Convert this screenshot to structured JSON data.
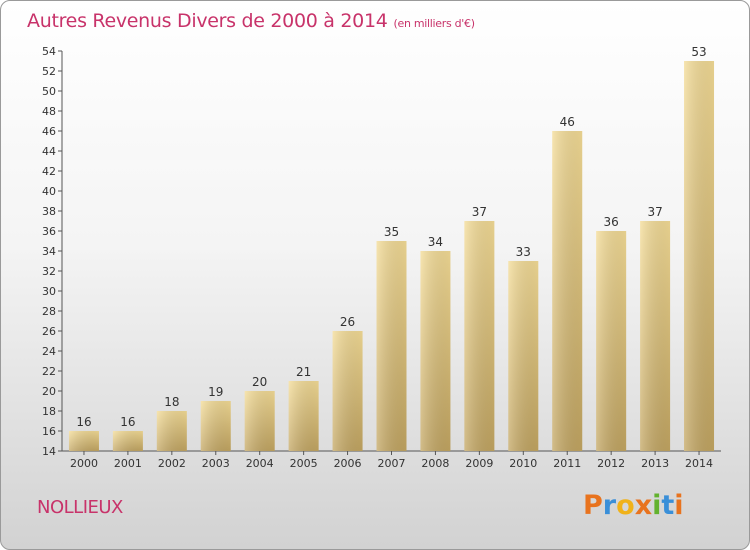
{
  "title": "Autres Revenus Divers de 2000 à 2014",
  "unit": "(en milliers d'€)",
  "commune": "NOLLIEUX",
  "logo": [
    "P",
    "r",
    "o",
    "x",
    "i",
    "t",
    "i"
  ],
  "logo_colors": [
    "#e8731e",
    "#3a8fd8",
    "#f0b21a",
    "#e8731e",
    "#63b22e",
    "#3a8fd8",
    "#e8731e"
  ],
  "chart_data": {
    "type": "bar",
    "title": "Autres Revenus Divers de 2000 à 2014",
    "categories": [
      "2000",
      "2001",
      "2002",
      "2003",
      "2004",
      "2005",
      "2006",
      "2007",
      "2008",
      "2009",
      "2010",
      "2011",
      "2012",
      "2013",
      "2014"
    ],
    "values": [
      16,
      16,
      18,
      19,
      20,
      21,
      26,
      35,
      34,
      37,
      33,
      46,
      36,
      37,
      53
    ],
    "ylim": [
      14,
      54
    ],
    "yticks": [
      14,
      16,
      18,
      20,
      22,
      24,
      26,
      28,
      30,
      32,
      34,
      36,
      38,
      40,
      42,
      44,
      46,
      48,
      50,
      52,
      54
    ],
    "grid": false,
    "legend": "none",
    "bar_color": "#e8cf8a"
  }
}
